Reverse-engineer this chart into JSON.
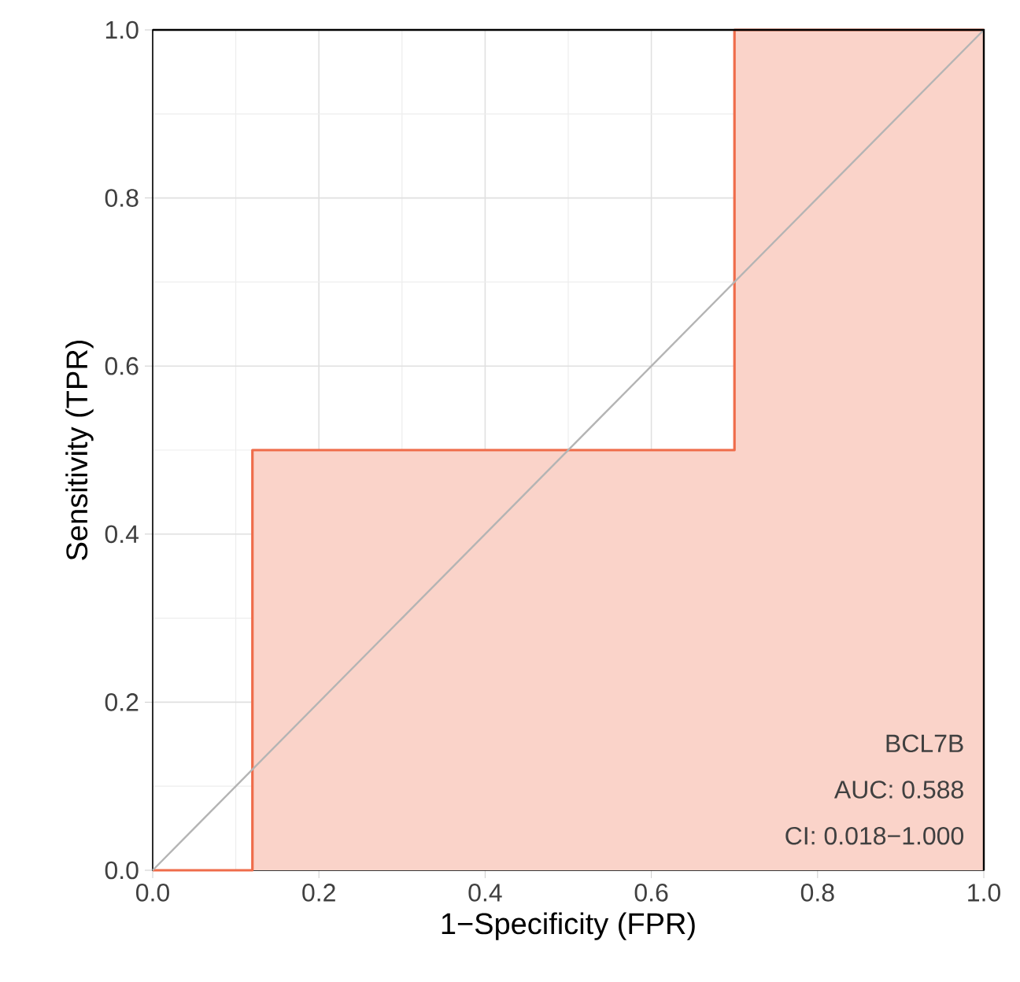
{
  "chart_data": {
    "type": "step",
    "xlabel": "1−Specificity (FPR)",
    "ylabel": "Sensitivity (TPR)",
    "x": [
      0,
      0.12,
      0.7,
      1
    ],
    "series": [
      {
        "color": "#ef6c4a",
        "values": [
          0,
          0.5,
          1,
          1
        ]
      },
      {
        "type": "line",
        "color": "#b4b4b4",
        "x": [
          0,
          1
        ],
        "values": [
          0,
          1
        ]
      }
    ],
    "xlim": [
      0,
      1
    ],
    "ylim": [
      0,
      1
    ],
    "xticks": [
      {
        "value": 0,
        "label": "0.0"
      },
      {
        "value": 0.2,
        "label": "0.2"
      },
      {
        "value": 0.4,
        "label": "0.4"
      },
      {
        "value": 0.6,
        "label": "0.6"
      },
      {
        "value": 0.8,
        "label": "0.8"
      },
      {
        "value": 1,
        "label": "1.0"
      }
    ],
    "yticks": [
      {
        "value": 0,
        "label": "0.0"
      },
      {
        "value": 0.2,
        "label": "0.2"
      },
      {
        "value": 0.4,
        "label": "0.4"
      },
      {
        "value": 0.6,
        "label": "0.6"
      },
      {
        "value": 0.8,
        "label": "0.8"
      },
      {
        "value": 1,
        "label": "1.0"
      }
    ],
    "grid": true,
    "annotations": [
      "BCL7B",
      "AUC: 0.588",
      "CI: 0.018−1.000"
    ]
  }
}
